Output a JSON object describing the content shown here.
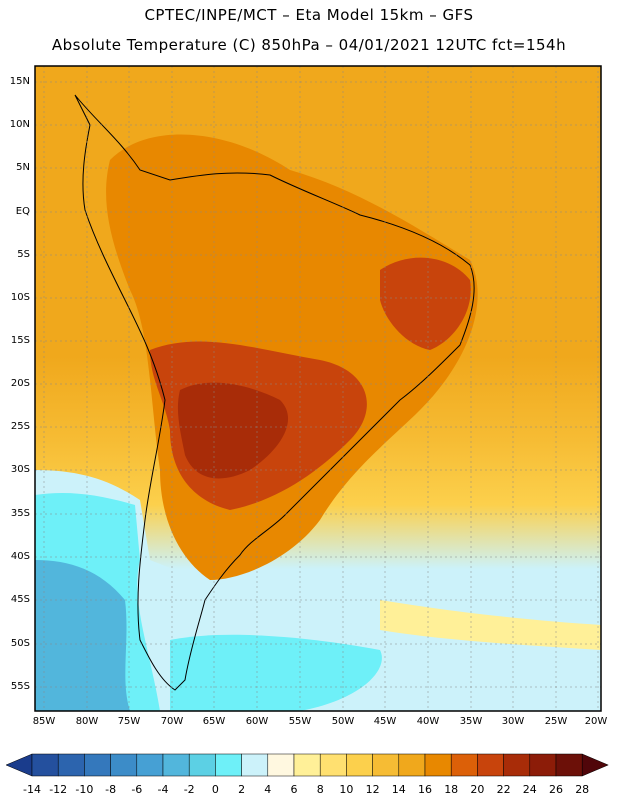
{
  "header": {
    "line1": "CPTEC/INPE/MCT –  Eta Model 15km – GFS",
    "line2": "Absolute Temperature (C) 850hPa – 04/01/2021 12UTC fct=154h"
  },
  "map": {
    "region": "South America",
    "lat_labels": [
      "15N",
      "10N",
      "5N",
      "EQ",
      "5S",
      "10S",
      "15S",
      "20S",
      "25S",
      "30S",
      "35S",
      "40S",
      "45S",
      "50S",
      "55S"
    ],
    "lon_labels": [
      "85W",
      "80W",
      "75W",
      "70W",
      "65W",
      "60W",
      "55W",
      "50W",
      "45W",
      "40W",
      "35W",
      "30W",
      "25W",
      "20W"
    ]
  },
  "colorbar": {
    "labels": [
      "-14",
      "-12",
      "-10",
      "-8",
      "-6",
      "-4",
      "-2",
      "0",
      "2",
      "4",
      "6",
      "8",
      "10",
      "12",
      "14",
      "16",
      "18",
      "20",
      "22",
      "24",
      "26",
      "28"
    ],
    "colors": [
      "#1a3c8c",
      "#24509e",
      "#2c64ae",
      "#3478bc",
      "#3c8cc8",
      "#46a0d4",
      "#52b6dc",
      "#5cd0e4",
      "#6ef0f8",
      "#ccf2fa",
      "#fff8e0",
      "#fff098",
      "#ffe070",
      "#fcd04c",
      "#f6bc34",
      "#f0a81c",
      "#e88800",
      "#dc6008",
      "#c8440c",
      "#a82c08",
      "#8c1c08",
      "#6c1008",
      "#50060a"
    ]
  }
}
